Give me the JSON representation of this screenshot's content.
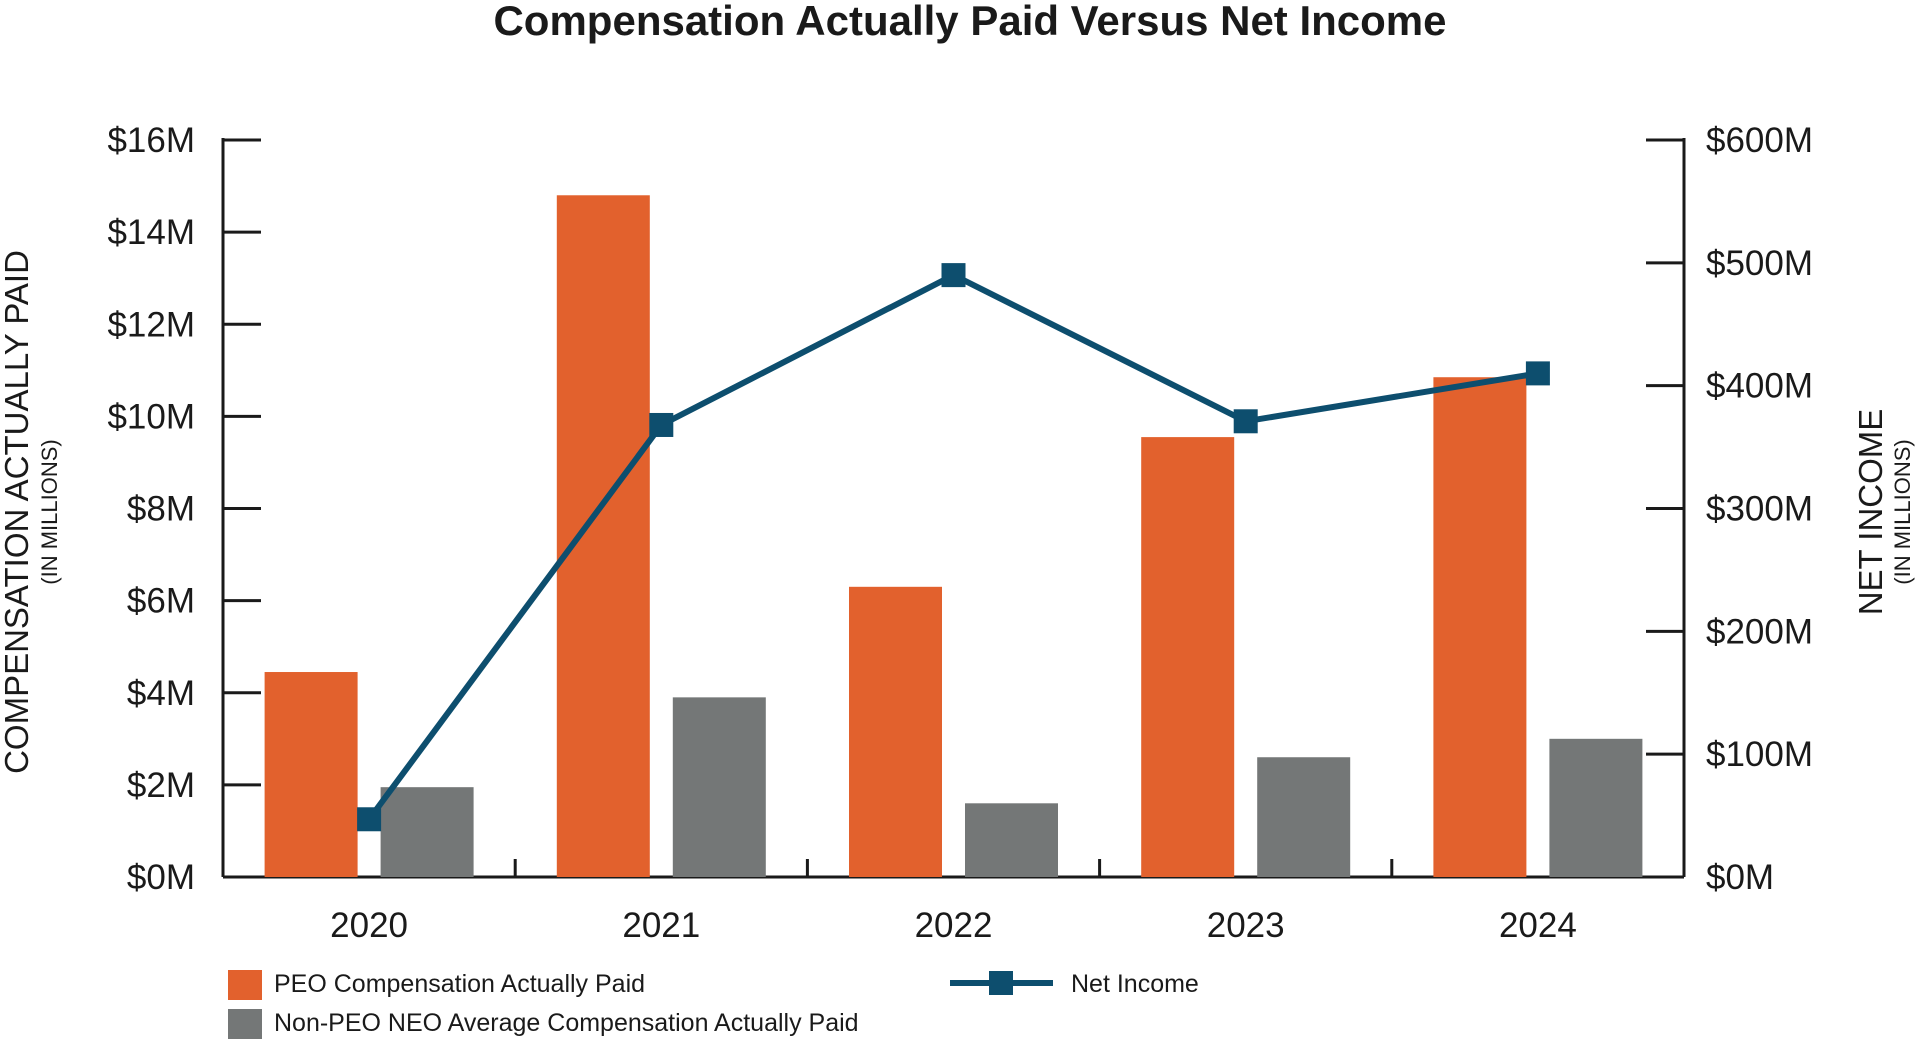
{
  "chart_data": {
    "type": "bar",
    "title": "Compensation Actually Paid Versus Net Income",
    "categories": [
      "2020",
      "2021",
      "2022",
      "2023",
      "2024"
    ],
    "y_left": {
      "label": "COMPENSATION ACTUALLY PAID",
      "sublabel": "(IN MILLIONS)",
      "ylim": [
        0,
        16
      ],
      "ticks": [
        0,
        2,
        4,
        6,
        8,
        10,
        12,
        14,
        16
      ],
      "tick_labels": [
        "$0M",
        "$2M",
        "$4M",
        "$6M",
        "$8M",
        "$10M",
        "$12M",
        "$14M",
        "$16M"
      ]
    },
    "y_right": {
      "label": "NET INCOME",
      "sublabel": "(IN MILLIONS)",
      "ylim": [
        0,
        600
      ],
      "ticks": [
        0,
        100,
        200,
        300,
        400,
        500,
        600
      ],
      "tick_labels": [
        "$0M",
        "$100M",
        "$200M",
        "$300M",
        "$400M",
        "$500M",
        "$600M"
      ]
    },
    "series": [
      {
        "name": "PEO Compensation Actually Paid",
        "type": "bar",
        "axis": "left",
        "color": "#E2612D",
        "values": [
          4.45,
          14.8,
          6.3,
          9.55,
          10.85
        ]
      },
      {
        "name": "Non-PEO NEO Average Compensation Actually Paid",
        "type": "bar",
        "axis": "left",
        "color": "#747777",
        "values": [
          1.95,
          3.9,
          1.6,
          2.6,
          3.0
        ]
      },
      {
        "name": "Net Income",
        "type": "line",
        "axis": "right",
        "color": "#0D4E6E",
        "marker": "square",
        "values": [
          47,
          368,
          490,
          371,
          410
        ]
      }
    ],
    "legend": {
      "placement": "bottom",
      "order": [
        0,
        1,
        2
      ]
    },
    "grid": false
  }
}
